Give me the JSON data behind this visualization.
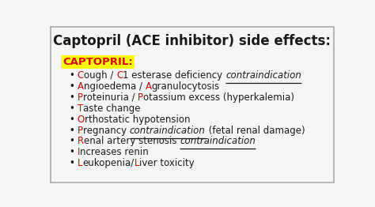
{
  "title": "Captopril (ACE inhibitor) side effects:",
  "bg_color": "#F5F5F5",
  "border_color": "#AAAAAA",
  "text_color": "#1A1A1A",
  "red_color": "#DD0000",
  "mnemonic_label": "CAPTOPRIL:",
  "mnemonic_bg": "#FFFF00",
  "mnemonic_color": "#DD0000",
  "lines": [
    [
      [
        "C",
        "r"
      ],
      [
        "ough / ",
        "b"
      ],
      [
        "C",
        "r"
      ],
      [
        "1 esterase deficiency ",
        "b"
      ],
      [
        "contraindication",
        "u"
      ]
    ],
    [
      [
        "A",
        "r"
      ],
      [
        "ngioedema / ",
        "b"
      ],
      [
        "A",
        "r"
      ],
      [
        "granulocytosis",
        "b"
      ]
    ],
    [
      [
        "P",
        "r"
      ],
      [
        "roteinuria / ",
        "b"
      ],
      [
        "P",
        "r"
      ],
      [
        "otassium excess (hyperkalemia)",
        "b"
      ]
    ],
    [
      [
        "T",
        "r"
      ],
      [
        "aste change",
        "b"
      ]
    ],
    [
      [
        "O",
        "r"
      ],
      [
        "rthostatic hypotension",
        "b"
      ]
    ],
    [
      [
        "P",
        "r"
      ],
      [
        "regnancy ",
        "b"
      ],
      [
        "contraindication",
        "u"
      ],
      [
        " (fetal renal damage)",
        "b"
      ]
    ],
    [
      [
        "R",
        "r"
      ],
      [
        "enal artery stenosis ",
        "b"
      ],
      [
        "contraindication",
        "u"
      ]
    ],
    [
      [
        "I",
        "r"
      ],
      [
        "ncreases renin",
        "b"
      ]
    ],
    [
      [
        "L",
        "r"
      ],
      [
        "eukopenia/",
        "b"
      ],
      [
        "L",
        "r"
      ],
      [
        "iver toxicity",
        "b"
      ]
    ]
  ]
}
